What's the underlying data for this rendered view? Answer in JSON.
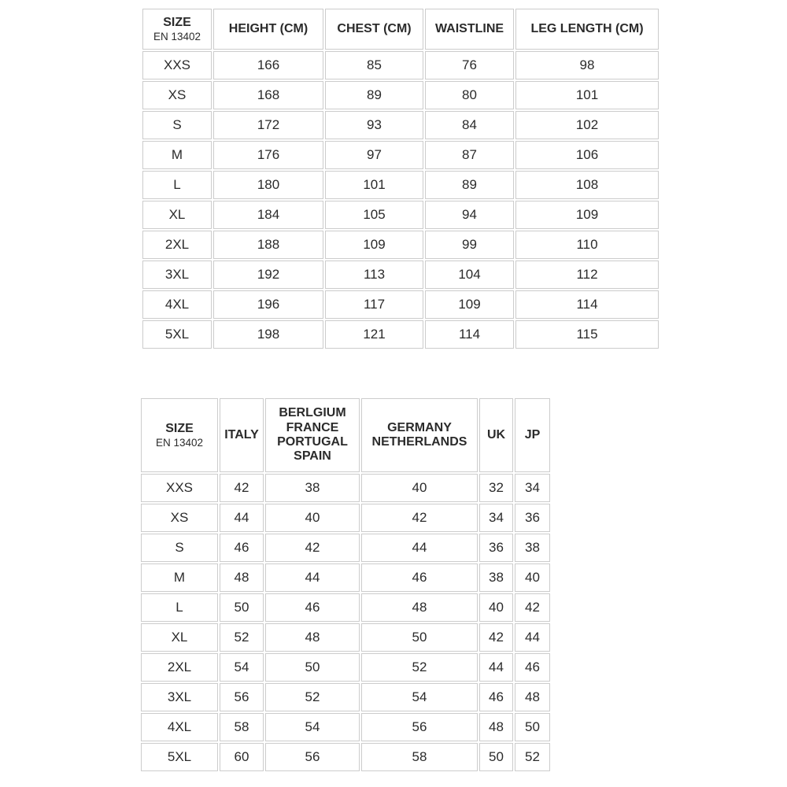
{
  "page": {
    "background": "#ffffff",
    "text_color": "#2b2b2b",
    "border_color": "#cccccc"
  },
  "tables": [
    {
      "name": "body-measurements-cm",
      "columns": [
        {
          "lines": [
            "SIZE"
          ],
          "subtitle": "EN 13402"
        },
        {
          "lines": [
            "HEIGHT (CM)"
          ]
        },
        {
          "lines": [
            "CHEST (CM)"
          ]
        },
        {
          "lines": [
            "WAISTLINE"
          ]
        },
        {
          "lines": [
            "LEG LENGTH (CM)"
          ]
        }
      ],
      "rows": [
        [
          "XXS",
          "166",
          "85",
          "76",
          "98"
        ],
        [
          "XS",
          "168",
          "89",
          "80",
          "101"
        ],
        [
          "S",
          "172",
          "93",
          "84",
          "102"
        ],
        [
          "M",
          "176",
          "97",
          "87",
          "106"
        ],
        [
          "L",
          "180",
          "101",
          "89",
          "108"
        ],
        [
          "XL",
          "184",
          "105",
          "94",
          "109"
        ],
        [
          "2XL",
          "188",
          "109",
          "99",
          "110"
        ],
        [
          "3XL",
          "192",
          "113",
          "104",
          "112"
        ],
        [
          "4XL",
          "196",
          "117",
          "109",
          "114"
        ],
        [
          "5XL",
          "198",
          "121",
          "114",
          "115"
        ]
      ]
    },
    {
      "name": "international-size-conversion",
      "columns": [
        {
          "lines": [
            "SIZE"
          ],
          "subtitle": "EN 13402"
        },
        {
          "lines": [
            "ITALY"
          ]
        },
        {
          "lines": [
            "BERLGIUM",
            "FRANCE",
            "PORTUGAL",
            "SPAIN"
          ]
        },
        {
          "lines": [
            "GERMANY",
            "NETHERLANDS"
          ]
        },
        {
          "lines": [
            "UK"
          ]
        },
        {
          "lines": [
            "JP"
          ]
        }
      ],
      "rows": [
        [
          "XXS",
          "42",
          "38",
          "40",
          "32",
          "34"
        ],
        [
          "XS",
          "44",
          "40",
          "42",
          "34",
          "36"
        ],
        [
          "S",
          "46",
          "42",
          "44",
          "36",
          "38"
        ],
        [
          "M",
          "48",
          "44",
          "46",
          "38",
          "40"
        ],
        [
          "L",
          "50",
          "46",
          "48",
          "40",
          "42"
        ],
        [
          "XL",
          "52",
          "48",
          "50",
          "42",
          "44"
        ],
        [
          "2XL",
          "54",
          "50",
          "52",
          "44",
          "46"
        ],
        [
          "3XL",
          "56",
          "52",
          "54",
          "46",
          "48"
        ],
        [
          "4XL",
          "58",
          "54",
          "56",
          "48",
          "50"
        ],
        [
          "5XL",
          "60",
          "56",
          "58",
          "50",
          "52"
        ]
      ]
    }
  ]
}
